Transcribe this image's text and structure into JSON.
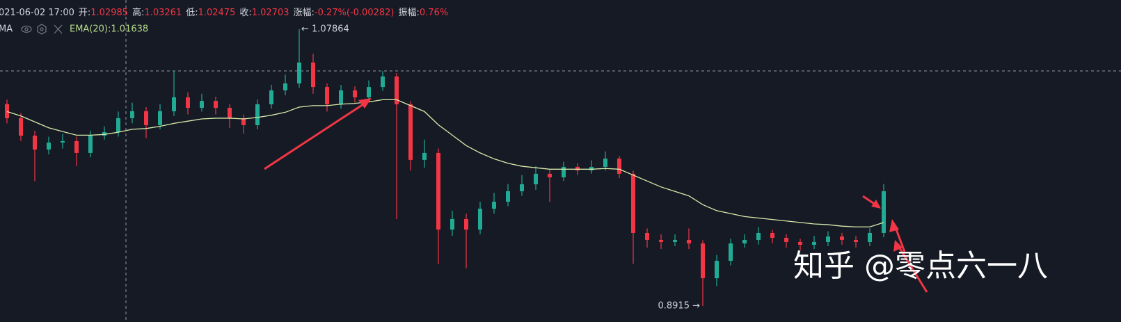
{
  "chart_data": {
    "type": "candlestick",
    "header": [
      {
        "label": "",
        "value": "021-06-02 17:00"
      },
      {
        "label": "开:",
        "value": "1.02985"
      },
      {
        "label": "高:",
        "value": "1.03261"
      },
      {
        "label": "低:",
        "value": "1.02475"
      },
      {
        "label": "收:",
        "value": "1.02703"
      },
      {
        "label": "涨幅:",
        "value": "-0.27%(-0.00282)"
      },
      {
        "label": "振幅:",
        "value": "0.76%"
      }
    ],
    "indicator_name": "MA",
    "indicator_legend": "EMA(20):1.01638",
    "annotations": [
      {
        "text": "← 1.07864",
        "value": 1.07864
      },
      {
        "text": "0.8915 →",
        "value": 0.8915
      }
    ],
    "watermark": "知乎 @零点六一八",
    "ylim": [
      0.8807,
      1.0984
    ],
    "up_color": "#22ab94",
    "down_color": "#f23645",
    "ema_color": "#d6ecaa",
    "open": [
      1.028,
      1.0185,
      1.0067,
      0.9973,
      1.002,
      1.003,
      0.995,
      1.0067,
      1.0091,
      1.0185,
      1.0232,
      1.0138,
      1.0232,
      1.0326,
      1.0255,
      1.0302,
      1.0255,
      1.0185,
      1.0138,
      1.0279,
      1.0373,
      1.042,
      1.0561,
      1.0396,
      1.0279,
      1.0373,
      1.0326,
      1.0396,
      1.0467,
      1.0279,
      0.9903,
      0.995,
      0.9432,
      0.9503,
      0.9432,
      0.9573,
      0.962,
      0.9691,
      0.9738,
      0.9809,
      0.9785,
      0.9856,
      0.9832,
      0.9856,
      0.9912,
      0.9809,
      0.9409,
      0.9362,
      0.9348,
      0.9362,
      0.9338,
      0.9103,
      0.9221,
      0.9338,
      0.9362,
      0.9409,
      0.9376,
      0.9348,
      0.9329,
      0.9348,
      0.9385,
      0.9362,
      0.9348,
      0.9409
    ],
    "high": [
      1.031,
      1.022,
      1.01,
      1.006,
      1.008,
      1.006,
      1.01,
      1.013,
      1.023,
      1.029,
      1.026,
      1.028,
      1.0504,
      1.036,
      1.035,
      1.033,
      1.028,
      1.021,
      1.031,
      1.041,
      1.048,
      1.07864,
      1.062,
      1.042,
      1.041,
      1.04,
      1.044,
      1.0504,
      1.049,
      1.03,
      1.004,
      0.998,
      0.956,
      0.954,
      0.962,
      0.968,
      0.974,
      0.98,
      0.986,
      0.984,
      0.989,
      0.988,
      0.99,
      0.996,
      0.993,
      0.983,
      0.944,
      0.94,
      0.94,
      0.944,
      0.936,
      0.926,
      0.937,
      0.94,
      0.945,
      0.943,
      0.94,
      0.937,
      0.939,
      0.942,
      0.941,
      0.939,
      0.944,
      0.974
    ],
    "low": [
      1.015,
      1.003,
      0.976,
      0.994,
      0.998,
      0.986,
      0.992,
      1.004,
      1.006,
      1.015,
      1.005,
      1.011,
      1.02,
      1.021,
      1.023,
      1.021,
      1.012,
      1.008,
      1.011,
      1.025,
      1.034,
      1.039,
      1.035,
      1.023,
      1.025,
      1.029,
      1.03,
      1.037,
      0.9503,
      0.983,
      0.985,
      0.9197,
      0.939,
      0.917,
      0.94,
      0.954,
      0.959,
      0.966,
      0.97,
      0.962,
      0.976,
      0.98,
      0.981,
      0.983,
      0.978,
      0.92,
      0.931,
      0.93,
      0.932,
      0.93,
      0.8915,
      0.905,
      0.919,
      0.931,
      0.933,
      0.934,
      0.931,
      0.929,
      0.93,
      0.932,
      0.933,
      0.931,
      0.932,
      0.938
    ],
    "close": [
      1.0185,
      1.0067,
      0.9973,
      1.002,
      1.003,
      0.995,
      1.0067,
      1.0091,
      1.0185,
      1.0232,
      1.0138,
      1.0232,
      1.0326,
      1.0255,
      1.0302,
      1.0255,
      1.0185,
      1.0138,
      1.0279,
      1.0373,
      1.042,
      1.0561,
      1.0396,
      1.0279,
      1.0373,
      1.0326,
      1.0396,
      1.0467,
      1.0279,
      0.9903,
      0.995,
      0.9432,
      0.9503,
      0.9432,
      0.9573,
      0.962,
      0.9691,
      0.9738,
      0.9809,
      0.9785,
      0.9856,
      0.9832,
      0.9856,
      0.9912,
      0.9809,
      0.9409,
      0.9362,
      0.9348,
      0.9362,
      0.9338,
      0.9103,
      0.9221,
      0.9338,
      0.9362,
      0.9409,
      0.9376,
      0.9348,
      0.9329,
      0.9348,
      0.9385,
      0.9362,
      0.9348,
      0.9409,
      0.9691
    ],
    "ema": [
      1.023,
      1.02,
      1.016,
      1.012,
      1.0095,
      1.007,
      1.007,
      1.0075,
      1.009,
      1.011,
      1.0115,
      1.013,
      1.015,
      1.0165,
      1.018,
      1.0185,
      1.0185,
      1.018,
      1.019,
      1.0205,
      1.0225,
      1.026,
      1.027,
      1.027,
      1.028,
      1.0285,
      1.0295,
      1.031,
      1.031,
      1.027,
      1.023,
      1.014,
      1.007,
      1.0,
      0.995,
      0.991,
      0.988,
      0.986,
      0.985,
      0.984,
      0.984,
      0.984,
      0.984,
      0.9845,
      0.984,
      0.98,
      0.976,
      0.972,
      0.969,
      0.966,
      0.96,
      0.956,
      0.954,
      0.952,
      0.951,
      0.95,
      0.949,
      0.948,
      0.947,
      0.9465,
      0.9455,
      0.945,
      0.945,
      0.948
    ]
  }
}
